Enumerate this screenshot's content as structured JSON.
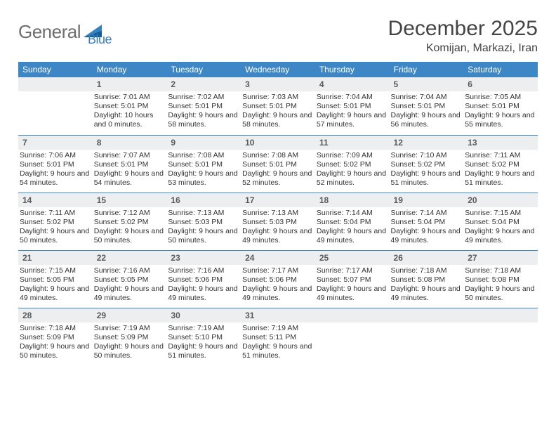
{
  "brand": {
    "gray": "General",
    "blue": "Blue"
  },
  "title": "December 2025",
  "location": "Komijan, Markazi, Iran",
  "colors": {
    "header_bg": "#3d87c7",
    "header_fg": "#ffffff",
    "daynum_bg": "#eceef0",
    "rule": "#3d87c7",
    "logo_gray": "#6e6e6e",
    "logo_blue": "#3a7fbf",
    "tri_dark": "#0f5f9e",
    "tri_light": "#3a7fbf"
  },
  "weekdays": [
    "Sunday",
    "Monday",
    "Tuesday",
    "Wednesday",
    "Thursday",
    "Friday",
    "Saturday"
  ],
  "layout": {
    "first_weekday_index": 1,
    "days_in_month": 31
  },
  "days": {
    "1": {
      "sunrise": "7:01 AM",
      "sunset": "5:01 PM",
      "daylight": "10 hours and 0 minutes."
    },
    "2": {
      "sunrise": "7:02 AM",
      "sunset": "5:01 PM",
      "daylight": "9 hours and 58 minutes."
    },
    "3": {
      "sunrise": "7:03 AM",
      "sunset": "5:01 PM",
      "daylight": "9 hours and 58 minutes."
    },
    "4": {
      "sunrise": "7:04 AM",
      "sunset": "5:01 PM",
      "daylight": "9 hours and 57 minutes."
    },
    "5": {
      "sunrise": "7:04 AM",
      "sunset": "5:01 PM",
      "daylight": "9 hours and 56 minutes."
    },
    "6": {
      "sunrise": "7:05 AM",
      "sunset": "5:01 PM",
      "daylight": "9 hours and 55 minutes."
    },
    "7": {
      "sunrise": "7:06 AM",
      "sunset": "5:01 PM",
      "daylight": "9 hours and 54 minutes."
    },
    "8": {
      "sunrise": "7:07 AM",
      "sunset": "5:01 PM",
      "daylight": "9 hours and 54 minutes."
    },
    "9": {
      "sunrise": "7:08 AM",
      "sunset": "5:01 PM",
      "daylight": "9 hours and 53 minutes."
    },
    "10": {
      "sunrise": "7:08 AM",
      "sunset": "5:01 PM",
      "daylight": "9 hours and 52 minutes."
    },
    "11": {
      "sunrise": "7:09 AM",
      "sunset": "5:02 PM",
      "daylight": "9 hours and 52 minutes."
    },
    "12": {
      "sunrise": "7:10 AM",
      "sunset": "5:02 PM",
      "daylight": "9 hours and 51 minutes."
    },
    "13": {
      "sunrise": "7:11 AM",
      "sunset": "5:02 PM",
      "daylight": "9 hours and 51 minutes."
    },
    "14": {
      "sunrise": "7:11 AM",
      "sunset": "5:02 PM",
      "daylight": "9 hours and 50 minutes."
    },
    "15": {
      "sunrise": "7:12 AM",
      "sunset": "5:02 PM",
      "daylight": "9 hours and 50 minutes."
    },
    "16": {
      "sunrise": "7:13 AM",
      "sunset": "5:03 PM",
      "daylight": "9 hours and 50 minutes."
    },
    "17": {
      "sunrise": "7:13 AM",
      "sunset": "5:03 PM",
      "daylight": "9 hours and 49 minutes."
    },
    "18": {
      "sunrise": "7:14 AM",
      "sunset": "5:04 PM",
      "daylight": "9 hours and 49 minutes."
    },
    "19": {
      "sunrise": "7:14 AM",
      "sunset": "5:04 PM",
      "daylight": "9 hours and 49 minutes."
    },
    "20": {
      "sunrise": "7:15 AM",
      "sunset": "5:04 PM",
      "daylight": "9 hours and 49 minutes."
    },
    "21": {
      "sunrise": "7:15 AM",
      "sunset": "5:05 PM",
      "daylight": "9 hours and 49 minutes."
    },
    "22": {
      "sunrise": "7:16 AM",
      "sunset": "5:05 PM",
      "daylight": "9 hours and 49 minutes."
    },
    "23": {
      "sunrise": "7:16 AM",
      "sunset": "5:06 PM",
      "daylight": "9 hours and 49 minutes."
    },
    "24": {
      "sunrise": "7:17 AM",
      "sunset": "5:06 PM",
      "daylight": "9 hours and 49 minutes."
    },
    "25": {
      "sunrise": "7:17 AM",
      "sunset": "5:07 PM",
      "daylight": "9 hours and 49 minutes."
    },
    "26": {
      "sunrise": "7:18 AM",
      "sunset": "5:08 PM",
      "daylight": "9 hours and 49 minutes."
    },
    "27": {
      "sunrise": "7:18 AM",
      "sunset": "5:08 PM",
      "daylight": "9 hours and 50 minutes."
    },
    "28": {
      "sunrise": "7:18 AM",
      "sunset": "5:09 PM",
      "daylight": "9 hours and 50 minutes."
    },
    "29": {
      "sunrise": "7:19 AM",
      "sunset": "5:09 PM",
      "daylight": "9 hours and 50 minutes."
    },
    "30": {
      "sunrise": "7:19 AM",
      "sunset": "5:10 PM",
      "daylight": "9 hours and 51 minutes."
    },
    "31": {
      "sunrise": "7:19 AM",
      "sunset": "5:11 PM",
      "daylight": "9 hours and 51 minutes."
    }
  },
  "labels": {
    "sunrise": "Sunrise:",
    "sunset": "Sunset:",
    "daylight": "Daylight:"
  }
}
